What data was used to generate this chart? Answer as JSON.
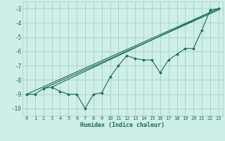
{
  "xlabel": "Humidex (Indice chaleur)",
  "ylabel": "",
  "bg_color": "#ceeee8",
  "grid_color": "#a8cfc8",
  "line_color": "#1a6b5a",
  "xlim": [
    -0.5,
    23.5
  ],
  "ylim": [
    -10.5,
    -2.5
  ],
  "xticks": [
    0,
    1,
    2,
    3,
    4,
    5,
    6,
    7,
    8,
    9,
    10,
    11,
    12,
    13,
    14,
    15,
    16,
    17,
    18,
    19,
    20,
    21,
    22,
    23
  ],
  "yticks": [
    -10,
    -9,
    -8,
    -7,
    -6,
    -5,
    -4,
    -3
  ],
  "series": [
    [
      0,
      -9.0
    ],
    [
      1,
      -9.0
    ],
    [
      2,
      -8.6
    ],
    [
      3,
      -8.5
    ],
    [
      4,
      -8.8
    ],
    [
      5,
      -9.0
    ],
    [
      6,
      -9.0
    ],
    [
      7,
      -10.0
    ],
    [
      8,
      -9.0
    ],
    [
      9,
      -8.9
    ],
    [
      10,
      -7.8
    ],
    [
      11,
      -7.0
    ],
    [
      12,
      -6.3
    ],
    [
      13,
      -6.5
    ],
    [
      14,
      -6.6
    ],
    [
      15,
      -6.6
    ],
    [
      16,
      -7.5
    ],
    [
      17,
      -6.6
    ],
    [
      18,
      -6.2
    ],
    [
      19,
      -5.8
    ],
    [
      20,
      -5.8
    ],
    [
      21,
      -4.5
    ],
    [
      22,
      -3.1
    ],
    [
      23,
      -3.0
    ]
  ],
  "line1": [
    [
      0,
      -9.0
    ],
    [
      23,
      -3.0
    ]
  ],
  "line2": [
    [
      2,
      -8.6
    ],
    [
      23,
      -3.1
    ]
  ],
  "line3": [
    [
      3,
      -8.5
    ],
    [
      23,
      -3.0
    ]
  ]
}
